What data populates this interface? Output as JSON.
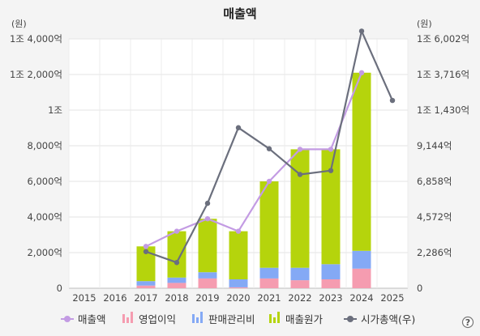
{
  "chart_data": {
    "type": "bar",
    "title": "매출액",
    "left_unit": "(원)",
    "right_unit": "(원)",
    "categories": [
      "2015",
      "2016",
      "2017",
      "2018",
      "2019",
      "2020",
      "2021",
      "2022",
      "2023",
      "2024",
      "2025"
    ],
    "left_ticks": [
      {
        "value": 0,
        "label": "0"
      },
      {
        "value": 2000,
        "label": "2,000억"
      },
      {
        "value": 4000,
        "label": "4,000억"
      },
      {
        "value": 6000,
        "label": "6,000억"
      },
      {
        "value": 8000,
        "label": "8,000억"
      },
      {
        "value": 10000,
        "label": "1조"
      },
      {
        "value": 12000,
        "label": "1조 2,000억"
      },
      {
        "value": 14000,
        "label": "1조 4,000억"
      }
    ],
    "right_ticks": [
      {
        "value": 0,
        "label": "0"
      },
      {
        "value": 2286,
        "label": "2,286억"
      },
      {
        "value": 4572,
        "label": "4,572억"
      },
      {
        "value": 6858,
        "label": "6,858억"
      },
      {
        "value": 9144,
        "label": "9,144억"
      },
      {
        "value": 11430,
        "label": "1조 1,430억"
      },
      {
        "value": 13716,
        "label": "1조 3,716억"
      },
      {
        "value": 16002,
        "label": "1조 6,002억"
      }
    ],
    "ylim_left": [
      0,
      14000
    ],
    "ylim_right": [
      0,
      16002
    ],
    "stacked_series": [
      {
        "name": "영업이익",
        "color": "#f59cb0",
        "values": [
          null,
          null,
          150,
          300,
          550,
          50,
          550,
          450,
          500,
          1100,
          null
        ]
      },
      {
        "name": "판매관리비",
        "color": "#84a9f5",
        "values": [
          null,
          null,
          250,
          300,
          350,
          450,
          600,
          700,
          850,
          1000,
          null
        ]
      },
      {
        "name": "매출원가",
        "color": "#b5d40c",
        "values": [
          null,
          null,
          1950,
          2600,
          3000,
          2700,
          4850,
          6650,
          6450,
          10000,
          null
        ]
      }
    ],
    "line_series": [
      {
        "name": "매출액",
        "axis": "left",
        "color": "#c39be3",
        "values": [
          null,
          null,
          2350,
          3200,
          3900,
          3200,
          6000,
          7800,
          7800,
          12100,
          null
        ]
      },
      {
        "name": "시가총액(우)",
        "axis": "right",
        "color": "#6b6f7d",
        "values": [
          null,
          null,
          2350,
          1650,
          5450,
          10300,
          8950,
          7300,
          7550,
          16500,
          12050
        ]
      }
    ],
    "legend": [
      {
        "label": "매출액",
        "icon": "line-dot",
        "color": "#c39be3"
      },
      {
        "label": "영업이익",
        "icon": "bars",
        "color": "#f59cb0"
      },
      {
        "label": "판매관리비",
        "icon": "bars",
        "color": "#84a9f5"
      },
      {
        "label": "매출원가",
        "icon": "bars",
        "color": "#b5d40c"
      },
      {
        "label": "시가총액(우)",
        "icon": "line-dot",
        "color": "#6b6f7d"
      }
    ],
    "legend_position": "bottom",
    "grid": true
  },
  "help_icon_label": "?"
}
